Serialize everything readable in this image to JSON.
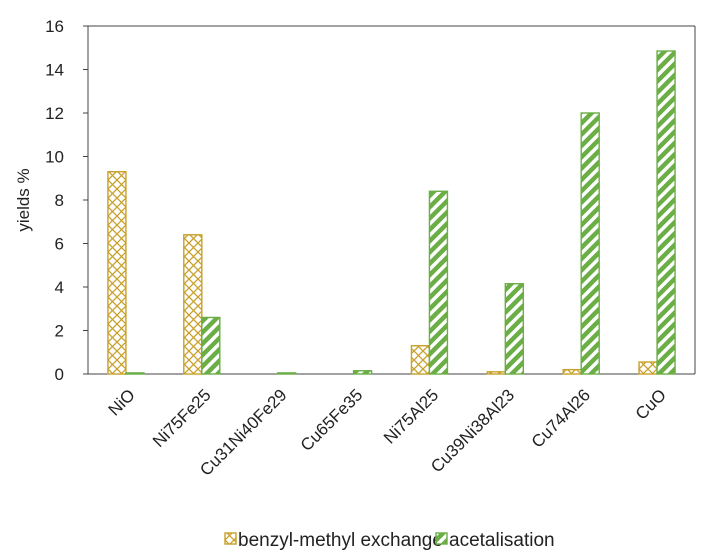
{
  "chart_data": {
    "type": "bar",
    "categories": [
      "NiO",
      "Ni75Fe25",
      "Cu31Ni40Fe29",
      "Cu65Fe35",
      "Ni75Al25",
      "Cu39Ni38Al23",
      "Cu74Al26",
      "CuO"
    ],
    "series": [
      {
        "name": "benzyl-methyl exchange",
        "values": [
          9.3,
          6.4,
          0.0,
          0.0,
          1.3,
          0.1,
          0.2,
          0.55
        ],
        "color": "#c8a02a",
        "pattern": "crosshatch"
      },
      {
        "name": "acetalisation",
        "values": [
          0.05,
          2.6,
          0.05,
          0.15,
          8.4,
          4.15,
          12.0,
          14.85
        ],
        "color": "#6aae45",
        "pattern": "diagonal-stripes"
      }
    ],
    "title": "",
    "xlabel": "",
    "ylabel": "yields %",
    "ylim": [
      0,
      16
    ],
    "yticks": [
      0,
      2,
      4,
      6,
      8,
      10,
      12,
      14,
      16
    ],
    "grid": false,
    "legend_position": "bottom"
  }
}
